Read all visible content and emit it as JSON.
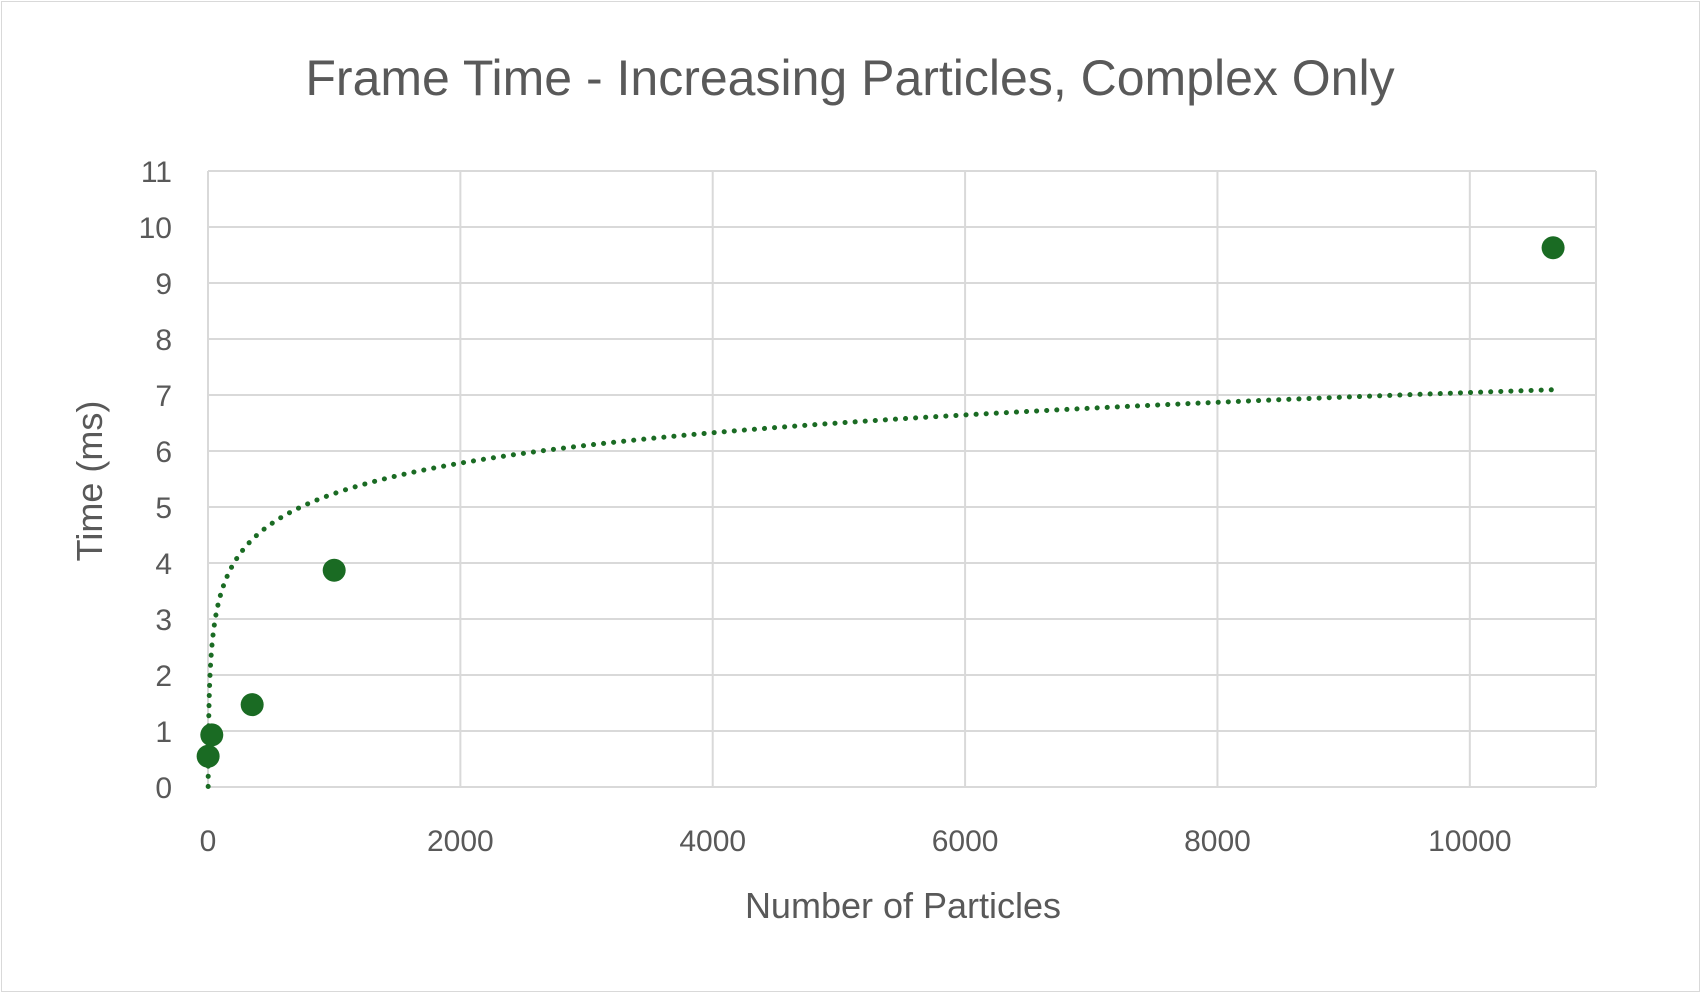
{
  "chart_data": {
    "type": "scatter",
    "title": "Frame Time - Increasing Particles, Complex Only",
    "xlabel": "Number of Particles",
    "ylabel": "Time (ms)",
    "xlim": [
      0,
      11000
    ],
    "ylim": [
      0,
      11
    ],
    "x_ticks": [
      0,
      2000,
      4000,
      6000,
      8000,
      10000
    ],
    "y_ticks": [
      0,
      1,
      2,
      3,
      4,
      5,
      6,
      7,
      8,
      9,
      10,
      11
    ],
    "grid": true,
    "series": [
      {
        "points": [
          {
            "x": 1,
            "y": 0.55
          },
          {
            "x": 30,
            "y": 0.93
          },
          {
            "x": 350,
            "y": 1.47
          },
          {
            "x": 1000,
            "y": 3.87
          },
          {
            "x": 10660,
            "y": 9.63
          }
        ],
        "color": "#1a6b23",
        "trendline": {
          "type": "logarithmic",
          "style": "dotted",
          "a": 0.7835,
          "b": -0.1719
        }
      }
    ]
  }
}
